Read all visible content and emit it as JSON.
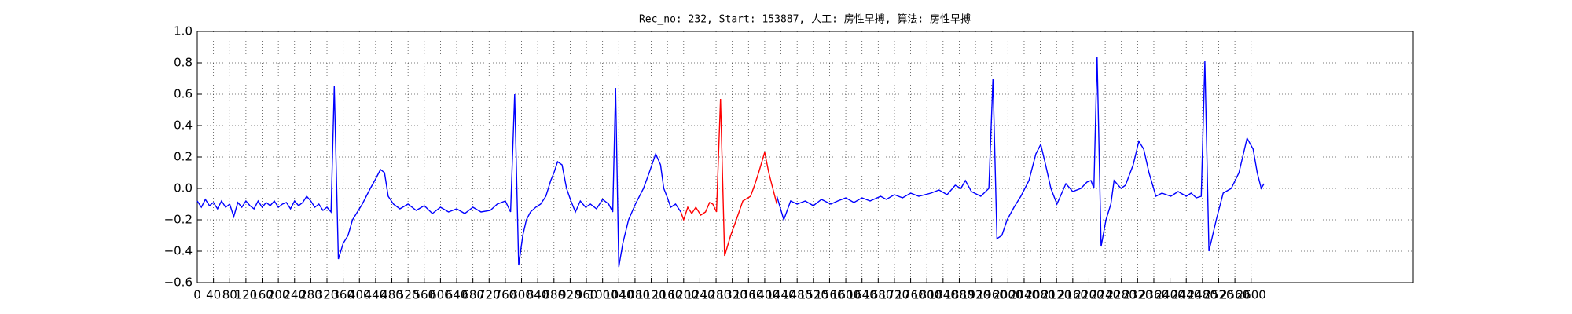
{
  "chart_data": {
    "type": "line",
    "title": "Rec_no: 232, Start: 153887, 人工: 房性早搏, 算法: 房性早搏",
    "xlim": [
      0,
      3000
    ],
    "ylim": [
      -0.6,
      1.0
    ],
    "xticks": [
      0,
      40,
      80,
      120,
      160,
      200,
      240,
      280,
      320,
      360,
      400,
      440,
      480,
      520,
      560,
      600,
      640,
      680,
      720,
      760,
      800,
      840,
      880,
      920,
      960,
      1000,
      1040,
      1080,
      1120,
      1160,
      1200,
      1240,
      1280,
      1320,
      1360,
      1400,
      1440,
      1480,
      1520,
      1560,
      1600,
      1640,
      1680,
      1720,
      1760,
      1800,
      1840,
      1880,
      1920,
      1960,
      2000,
      2040,
      2080,
      2120,
      2160,
      2200,
      2240,
      2280,
      2320,
      2360,
      2400,
      2440,
      2480,
      2520,
      2560,
      2600
    ],
    "yticks": [
      {
        "value": -0.6,
        "label": "−0.6"
      },
      {
        "value": -0.4,
        "label": "−0.4"
      },
      {
        "value": -0.2,
        "label": "−0.2"
      },
      {
        "value": 0,
        "label": "0.0"
      },
      0.2,
      0.4,
      0.6,
      0.8,
      {
        "value": 1,
        "label": "1.0"
      }
    ],
    "grid": true,
    "series": [
      {
        "color": "#0000ff",
        "x": [
          0,
          10,
          20,
          30,
          40,
          50,
          60,
          70,
          80,
          90,
          100,
          110,
          120,
          130,
          140,
          150,
          160,
          170,
          180,
          190,
          200,
          210,
          220,
          230,
          240,
          250,
          260,
          270,
          280,
          290,
          300,
          310,
          320,
          330,
          338,
          348,
          360,
          372,
          383,
          395,
          407,
          417,
          427,
          440,
          452,
          462,
          471,
          484,
          500,
          520,
          540,
          560,
          580,
          600,
          620,
          640,
          660,
          680,
          700,
          723,
          740,
          760,
          773,
          783,
          793,
          803,
          812,
          822,
          835,
          847,
          860,
          872,
          880,
          889,
          900,
          911,
          922,
          933,
          945,
          958,
          970,
          985,
          1000,
          1015,
          1025,
          1032,
          1040,
          1050,
          1064,
          1081,
          1101,
          1115,
          1131,
          1143,
          1151,
          1160,
          1168,
          1180,
          1193,
          1300,
          1430,
          1447,
          1464,
          1480,
          1500,
          1520,
          1540,
          1563,
          1580,
          1600,
          1620,
          1640,
          1660,
          1686,
          1700,
          1720,
          1740,
          1760,
          1780,
          1810,
          1830,
          1850,
          1870,
          1884,
          1895,
          1910,
          1933,
          1953,
          1963,
          1973,
          1985,
          1998,
          2015,
          2032,
          2052,
          2069,
          2081,
          2093,
          2106,
          2121,
          2143,
          2160,
          2180,
          2195,
          2205,
          2212,
          2220,
          2230,
          2242,
          2254,
          2262,
          2279,
          2290,
          2309,
          2323,
          2335,
          2348,
          2365,
          2380,
          2402,
          2420,
          2440,
          2452,
          2465,
          2477,
          2486,
          2496,
          2514,
          2531,
          2551,
          2570,
          2590,
          2605,
          2615,
          2625,
          2632
        ],
        "values": [
          -0.08,
          -0.12,
          -0.07,
          -0.11,
          -0.09,
          -0.13,
          -0.08,
          -0.12,
          -0.1,
          -0.18,
          -0.09,
          -0.12,
          -0.08,
          -0.11,
          -0.13,
          -0.08,
          -0.12,
          -0.09,
          -0.11,
          -0.08,
          -0.12,
          -0.1,
          -0.09,
          -0.13,
          -0.08,
          -0.11,
          -0.09,
          -0.05,
          -0.08,
          -0.12,
          -0.1,
          -0.14,
          -0.12,
          -0.15,
          0.65,
          -0.45,
          -0.35,
          -0.3,
          -0.2,
          -0.15,
          -0.1,
          -0.05,
          0.0,
          0.06,
          0.12,
          0.1,
          -0.05,
          -0.1,
          -0.13,
          -0.1,
          -0.14,
          -0.11,
          -0.16,
          -0.12,
          -0.15,
          -0.13,
          -0.16,
          -0.12,
          -0.15,
          -0.14,
          -0.1,
          -0.08,
          -0.15,
          0.6,
          -0.49,
          -0.3,
          -0.2,
          -0.15,
          -0.12,
          -0.1,
          -0.05,
          0.05,
          0.1,
          0.17,
          0.15,
          0.0,
          -0.08,
          -0.15,
          -0.08,
          -0.12,
          -0.1,
          -0.13,
          -0.07,
          -0.1,
          -0.15,
          0.64,
          -0.5,
          -0.35,
          -0.2,
          -0.1,
          0.0,
          0.1,
          0.22,
          0.15,
          0.0,
          -0.06,
          -0.12,
          -0.1,
          -0.15,
          null,
          -0.05,
          -0.2,
          -0.08,
          -0.1,
          -0.08,
          -0.11,
          -0.07,
          -0.1,
          -0.08,
          -0.06,
          -0.09,
          -0.06,
          -0.08,
          -0.05,
          -0.07,
          -0.04,
          -0.06,
          -0.03,
          -0.05,
          -0.03,
          -0.01,
          -0.04,
          0.02,
          0.0,
          0.05,
          -0.02,
          -0.05,
          0.0,
          0.7,
          -0.32,
          -0.3,
          -0.2,
          -0.12,
          -0.05,
          0.05,
          0.22,
          0.28,
          0.15,
          0.0,
          -0.1,
          0.03,
          -0.02,
          0.0,
          0.04,
          0.05,
          0.0,
          0.84,
          -0.37,
          -0.2,
          -0.1,
          0.05,
          0.0,
          0.02,
          0.15,
          0.3,
          0.25,
          0.1,
          -0.05,
          -0.03,
          -0.05,
          -0.02,
          -0.05,
          -0.03,
          -0.06,
          -0.05,
          0.81,
          -0.4,
          -0.2,
          -0.03,
          0.0,
          0.1,
          0.32,
          0.25,
          0.1,
          0.0,
          0.03
        ]
      },
      {
        "color": "#ff0000",
        "x": [
          1193,
          1200,
          1210,
          1220,
          1230,
          1242,
          1254,
          1264,
          1272,
          1281,
          1291,
          1301,
          1316,
          1330,
          1346,
          1365,
          1375,
          1385,
          1400,
          1410,
          1420,
          1430
        ],
        "values": [
          -0.15,
          -0.2,
          -0.12,
          -0.16,
          -0.12,
          -0.17,
          -0.15,
          -0.09,
          -0.1,
          -0.15,
          0.57,
          -0.43,
          -0.3,
          -0.2,
          -0.08,
          -0.05,
          0.02,
          0.1,
          0.23,
          0.1,
          0.0,
          -0.1
        ]
      }
    ]
  }
}
